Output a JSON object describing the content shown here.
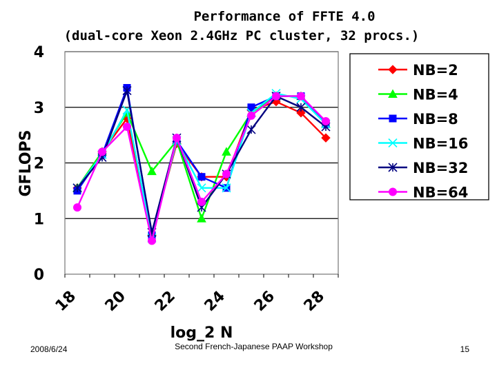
{
  "footer": {
    "date": "2008/6/24",
    "center": "Second French-Japanese PAAP Workshop",
    "page": "15"
  },
  "chart_data": {
    "type": "line",
    "title": "Performance of FFTE 4.0",
    "subtitle": "(dual-core Xeon 2.4GHz PC cluster, 32 procs.)",
    "xlabel": "log_2 N",
    "ylabel": "GFLOPS",
    "x": [
      18,
      19,
      20,
      21,
      22,
      23,
      24,
      25,
      26,
      27,
      28
    ],
    "x_tick_labels": [
      "18",
      "20",
      "22",
      "24",
      "26",
      "28"
    ],
    "y_tick_labels": [
      "0",
      "1",
      "2",
      "3",
      "4"
    ],
    "ylim": [
      0,
      4
    ],
    "xlim": [
      17.5,
      28.5
    ],
    "grid": true,
    "legend_position": "right",
    "series": [
      {
        "name": "NB=2",
        "color": "#ff0000",
        "marker": "diamond",
        "values": [
          1.55,
          2.2,
          2.8,
          0.7,
          2.35,
          1.75,
          1.75,
          2.95,
          3.1,
          2.9,
          2.45
        ]
      },
      {
        "name": "NB=4",
        "color": "#00ff00",
        "marker": "triangle",
        "values": [
          1.55,
          2.2,
          2.9,
          1.85,
          2.4,
          1.0,
          2.2,
          2.9,
          3.2,
          3.2,
          2.7
        ]
      },
      {
        "name": "NB=8",
        "color": "#0000ff",
        "marker": "square",
        "values": [
          1.5,
          2.15,
          3.35,
          0.7,
          2.4,
          1.75,
          1.55,
          3.0,
          3.2,
          3.2,
          2.7
        ]
      },
      {
        "name": "NB=16",
        "color": "#00ffff",
        "marker": "x",
        "values": [
          1.55,
          2.15,
          2.95,
          0.65,
          2.4,
          1.55,
          1.55,
          2.9,
          3.25,
          3.15,
          2.7
        ]
      },
      {
        "name": "NB=32",
        "color": "#000080",
        "marker": "star",
        "values": [
          1.55,
          2.1,
          3.3,
          0.75,
          2.45,
          1.2,
          1.8,
          2.6,
          3.2,
          3.0,
          2.65
        ]
      },
      {
        "name": "NB=64",
        "color": "#ff00ff",
        "marker": "circle",
        "values": [
          1.2,
          2.2,
          2.65,
          0.6,
          2.45,
          1.3,
          1.8,
          2.85,
          3.2,
          3.2,
          2.75
        ]
      }
    ]
  }
}
